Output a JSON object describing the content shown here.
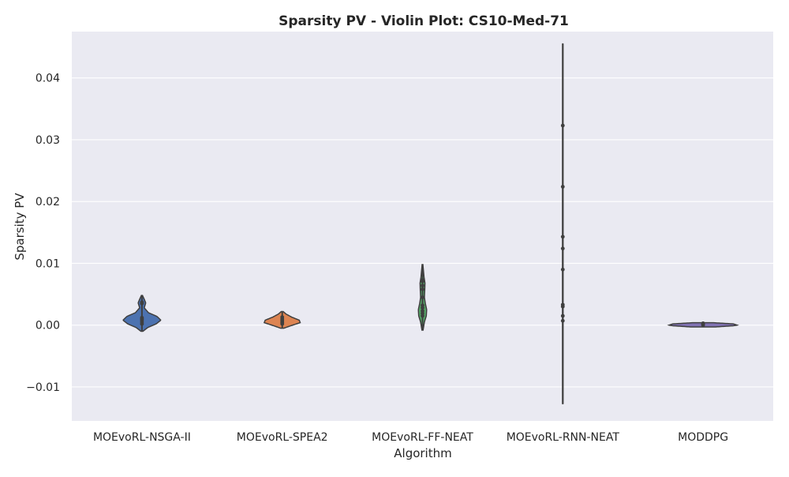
{
  "chart_data": {
    "type": "violin",
    "title": "Sparsity PV - Violin Plot: CS10-Med-71",
    "xlabel": "Algorithm",
    "ylabel": "Sparsity PV",
    "ylim": [
      -0.0155,
      0.0475
    ],
    "yticks": [
      -0.01,
      0.0,
      0.01,
      0.02,
      0.03,
      0.04
    ],
    "ytick_labels": [
      "−0.01",
      "0.00",
      "0.01",
      "0.02",
      "0.03",
      "0.04"
    ],
    "grid": true,
    "categories": [
      "MOEvoRL-NSGA-II",
      "MOEvoRL-SPEA2",
      "MOEvoRL-FF-NEAT",
      "MOEvoRL-RNN-NEAT",
      "MODDPG"
    ],
    "series": [
      {
        "color": "#4c72b0",
        "range": [
          -0.001,
          0.0048
        ],
        "points": [
          0.0002,
          0.0005,
          0.0008,
          0.001,
          0.0012,
          0.0035,
          0.0037
        ],
        "profile": [
          [
            -0.001,
            0.05
          ],
          [
            -0.0004,
            0.3
          ],
          [
            0.0002,
            0.75
          ],
          [
            0.0008,
            1.0
          ],
          [
            0.0014,
            0.8
          ],
          [
            0.002,
            0.35
          ],
          [
            0.0028,
            0.12
          ],
          [
            0.0036,
            0.2
          ],
          [
            0.0042,
            0.12
          ],
          [
            0.0048,
            0.03
          ]
        ]
      },
      {
        "color": "#dd8452",
        "range": [
          -0.0005,
          0.0022
        ],
        "points": [
          0.0002,
          0.0004,
          0.0006,
          0.0008,
          0.001,
          0.0013
        ],
        "profile": [
          [
            -0.0005,
            0.08
          ],
          [
            -0.0001,
            0.45
          ],
          [
            0.0004,
            0.95
          ],
          [
            0.0008,
            0.9
          ],
          [
            0.0013,
            0.5
          ],
          [
            0.0018,
            0.2
          ],
          [
            0.0022,
            0.05
          ]
        ]
      },
      {
        "color": "#55a868",
        "range": [
          -0.0008,
          0.0098
        ],
        "points": [
          0.0015,
          0.0019,
          0.0023,
          0.0028,
          0.0032,
          0.0045,
          0.0058,
          0.0064,
          0.0071,
          0.0073
        ],
        "profile": [
          [
            -0.0008,
            0.03
          ],
          [
            0.0005,
            0.1
          ],
          [
            0.0015,
            0.2
          ],
          [
            0.0025,
            0.22
          ],
          [
            0.0035,
            0.15
          ],
          [
            0.0045,
            0.1
          ],
          [
            0.0058,
            0.12
          ],
          [
            0.0068,
            0.13
          ],
          [
            0.0078,
            0.08
          ],
          [
            0.0088,
            0.05
          ],
          [
            0.0098,
            0.02
          ]
        ]
      },
      {
        "color": "#c44e52",
        "range": [
          -0.0127,
          0.0455
        ],
        "points": [
          0.0007,
          0.0015,
          0.003,
          0.0033,
          0.009,
          0.0124,
          0.0143,
          0.0224,
          0.0323
        ],
        "profile": [
          [
            -0.0127,
            0.01
          ],
          [
            0.0,
            0.012
          ],
          [
            0.01,
            0.012
          ],
          [
            0.02,
            0.011
          ],
          [
            0.03,
            0.01
          ],
          [
            0.0455,
            0.008
          ]
        ]
      },
      {
        "color": "#8172b3",
        "range": [
          -0.0003,
          0.0004
        ],
        "points": [
          0.0,
          0.0001,
          0.0002,
          0.0003
        ],
        "profile": [
          [
            -0.0003,
            0.6
          ],
          [
            -0.0001,
            1.6
          ],
          [
            0.0,
            1.8
          ],
          [
            0.0002,
            1.6
          ],
          [
            0.0004,
            0.5
          ]
        ]
      }
    ]
  }
}
